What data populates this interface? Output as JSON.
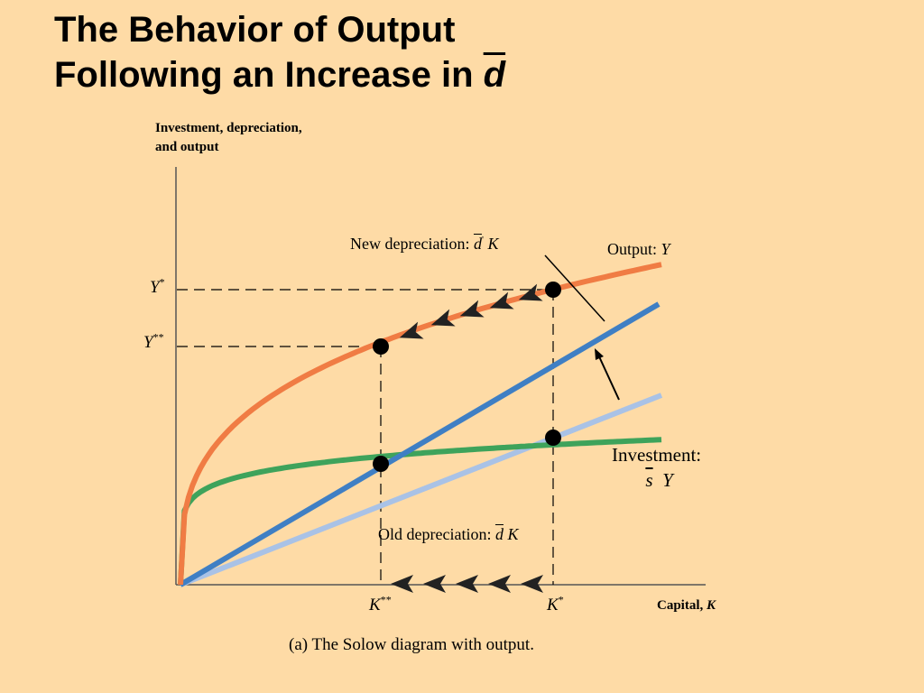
{
  "title": {
    "line1": "The Behavior of Output",
    "line2_prefix": "Following an Increase in ",
    "line2_symbol": "d"
  },
  "caption": "(a) The Solow diagram with output.",
  "colors": {
    "background": "#FEDBA6",
    "output": "#F07C44",
    "new_depreciation": "#3F7FC4",
    "old_depreciation": "#A9C2E6",
    "investment": "#3EA35B",
    "axes": "#555555",
    "points": "#000000"
  },
  "chart_data": {
    "type": "line",
    "title": "",
    "xlabel": "Capital, K",
    "ylabel": "Investment, depreciation, and output",
    "xlabel_prefix": "Capital, ",
    "xlabel_var": "K",
    "ylabel_line1": "Investment, depreciation,",
    "ylabel_line2": "and output",
    "x_ticks": [
      {
        "label": "K",
        "sup": "**"
      },
      {
        "label": "K",
        "sup": "*"
      }
    ],
    "y_ticks": [
      {
        "label": "Y",
        "sup": "*"
      },
      {
        "label": "Y",
        "sup": "**"
      }
    ],
    "series": [
      {
        "name": "Output: Y",
        "label_prefix": "Output: ",
        "label_var": "Y"
      },
      {
        "name": "New depreciation: d' K",
        "label_prefix": "New depreciation: ",
        "label_var": "d",
        "label_prime": "'",
        "label_suffix": "K"
      },
      {
        "name": "Old depreciation: d K",
        "label_prefix": "Old depreciation: ",
        "label_var": "d",
        "label_suffix": "K"
      },
      {
        "name": "Investment: s Y",
        "label_line1": "Investment:",
        "label_var1": "s",
        "label_var2": "Y"
      }
    ],
    "points": [
      "K*, Y*",
      "K**, Y**",
      "K**, investment = new depreciation",
      "K*, investment = old depreciation"
    ],
    "annotations": [
      "arrows along output curve from Y* to Y**",
      "arrows along capital axis from K* to K**",
      "arrow indicating depreciation line shifting up"
    ]
  }
}
